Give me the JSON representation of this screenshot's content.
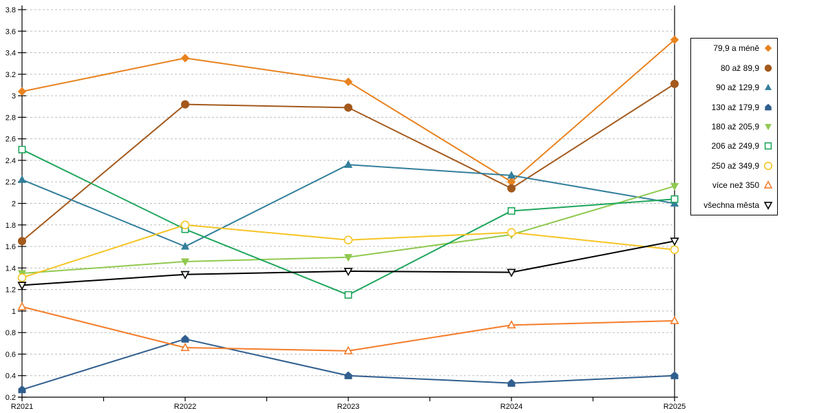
{
  "chart_data": {
    "type": "line",
    "categories": [
      "R2021",
      "R2022",
      "R2023",
      "R2024",
      "R2025"
    ],
    "series": [
      {
        "name": "79,9 a méně",
        "color": "#E8821E",
        "marker": "diamond",
        "fill": "solid",
        "values": [
          3.04,
          3.35,
          3.13,
          2.2,
          3.52
        ]
      },
      {
        "name": "80 až 89,9",
        "color": "#A3591C",
        "marker": "circle",
        "fill": "solid",
        "values": [
          1.65,
          2.92,
          2.89,
          2.14,
          3.11
        ]
      },
      {
        "name": "90 až 129,9",
        "color": "#337F9B",
        "marker": "triangle-up",
        "fill": "solid",
        "values": [
          2.22,
          1.6,
          2.36,
          2.26,
          2.0
        ]
      },
      {
        "name": "130 až 179,9",
        "color": "#305E8E",
        "marker": "pentagon",
        "fill": "solid",
        "values": [
          0.27,
          0.74,
          0.4,
          0.33,
          0.4
        ]
      },
      {
        "name": "180 až 205,9",
        "color": "#90C94F",
        "marker": "triangle-down",
        "fill": "solid",
        "values": [
          1.35,
          1.46,
          1.5,
          1.71,
          2.16
        ]
      },
      {
        "name": "206 až 249,9",
        "color": "#1EA65C",
        "marker": "square",
        "fill": "open",
        "values": [
          2.5,
          1.76,
          1.15,
          1.93,
          2.04
        ]
      },
      {
        "name": "250 až 349,9",
        "color": "#F6C423",
        "marker": "circle",
        "fill": "open",
        "values": [
          1.31,
          1.8,
          1.66,
          1.73,
          1.57
        ]
      },
      {
        "name": "více než 350",
        "color": "#F47D2B",
        "marker": "triangle-up",
        "fill": "open",
        "values": [
          1.04,
          0.66,
          0.63,
          0.87,
          0.91
        ]
      },
      {
        "name": "všechna města",
        "color": "#000000",
        "marker": "triangle-down",
        "fill": "open",
        "values": [
          1.24,
          1.34,
          1.37,
          1.36,
          1.65
        ]
      }
    ],
    "xlabel": "",
    "ylabel": "",
    "title": "",
    "ylim": [
      0.2,
      3.8
    ],
    "ytick_step": 0.2,
    "y_tick_labels": [
      "0.2",
      "0.4",
      "0.6",
      "0.8",
      "1",
      "1.2",
      "1.4",
      "1.6",
      "1.8",
      "2",
      "2.2",
      "2.4",
      "2.6",
      "2.8",
      "3",
      "3.2",
      "3.4",
      "3.6",
      "3.8"
    ],
    "grid": "horizontal-dashed",
    "grid_color": "#BDBDBD",
    "axis_color": "#000000",
    "legend_position": "right"
  }
}
